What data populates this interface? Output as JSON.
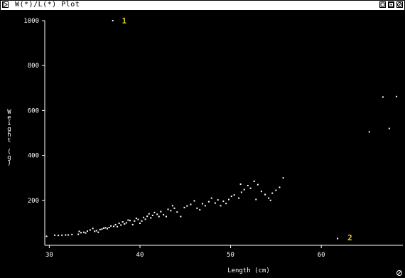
{
  "window": {
    "title": "W(*)/L(*) Plot",
    "controls": [
      "zoom-icon",
      "resize-icon",
      "close-icon"
    ]
  },
  "colors": {
    "background": "#000000",
    "points": "#ffffff",
    "annotation": "#e8d020"
  },
  "chart_data": {
    "type": "scatter",
    "title": "",
    "xlabel": "Length (cm)",
    "ylabel": "Weight (g)",
    "xlim": [
      29.5,
      69
    ],
    "ylim": [
      0,
      1000
    ],
    "x_ticks": [
      30,
      40,
      50,
      60
    ],
    "y_ticks": [
      200,
      400,
      600,
      800,
      1000
    ],
    "grid": false,
    "series": [
      {
        "points": [
          [
            29.7,
            40
          ],
          [
            30.6,
            45
          ],
          [
            31.0,
            44
          ],
          [
            31.4,
            45
          ],
          [
            31.8,
            46
          ],
          [
            32.1,
            46
          ],
          [
            32.5,
            48
          ],
          [
            33.2,
            49
          ],
          [
            33.3,
            62
          ],
          [
            33.5,
            56
          ],
          [
            33.8,
            58
          ],
          [
            34.0,
            55
          ],
          [
            34.2,
            63
          ],
          [
            34.5,
            68
          ],
          [
            34.8,
            75
          ],
          [
            35.0,
            62
          ],
          [
            35.2,
            65
          ],
          [
            35.4,
            58
          ],
          [
            35.6,
            70
          ],
          [
            35.8,
            72
          ],
          [
            36.0,
            76
          ],
          [
            36.2,
            78
          ],
          [
            36.4,
            74
          ],
          [
            36.6,
            79
          ],
          [
            36.8,
            86
          ],
          [
            37.1,
            84
          ],
          [
            37.3,
            92
          ],
          [
            37.5,
            83
          ],
          [
            37.7,
            98
          ],
          [
            37.9,
            90
          ],
          [
            38.1,
            104
          ],
          [
            38.3,
            95
          ],
          [
            38.5,
            100
          ],
          [
            38.7,
            112
          ],
          [
            38.9,
            110
          ],
          [
            39.2,
            92
          ],
          [
            39.4,
            108
          ],
          [
            39.6,
            120
          ],
          [
            39.8,
            115
          ],
          [
            40.0,
            98
          ],
          [
            40.2,
            108
          ],
          [
            40.4,
            124
          ],
          [
            40.6,
            116
          ],
          [
            40.8,
            129
          ],
          [
            41.0,
            140
          ],
          [
            41.2,
            122
          ],
          [
            41.4,
            133
          ],
          [
            41.6,
            146
          ],
          [
            41.9,
            138
          ],
          [
            42.1,
            128
          ],
          [
            42.3,
            150
          ],
          [
            42.6,
            136
          ],
          [
            42.9,
            128
          ],
          [
            43.1,
            160
          ],
          [
            43.4,
            154
          ],
          [
            43.6,
            176
          ],
          [
            43.8,
            165
          ],
          [
            44.1,
            148
          ],
          [
            44.5,
            128
          ],
          [
            44.9,
            168
          ],
          [
            45.2,
            175
          ],
          [
            45.6,
            182
          ],
          [
            46.0,
            198
          ],
          [
            46.3,
            165
          ],
          [
            46.6,
            158
          ],
          [
            46.9,
            185
          ],
          [
            47.2,
            176
          ],
          [
            47.6,
            194
          ],
          [
            47.9,
            210
          ],
          [
            48.3,
            188
          ],
          [
            48.6,
            202
          ],
          [
            48.9,
            176
          ],
          [
            49.2,
            196
          ],
          [
            49.5,
            186
          ],
          [
            49.8,
            204
          ],
          [
            50.1,
            218
          ],
          [
            50.4,
            224
          ],
          [
            50.9,
            210
          ],
          [
            51.2,
            236
          ],
          [
            51.5,
            248
          ],
          [
            51.9,
            266
          ],
          [
            52.2,
            254
          ],
          [
            52.6,
            285
          ],
          [
            53.0,
            270
          ],
          [
            53.4,
            240
          ],
          [
            53.8,
            226
          ],
          [
            54.2,
            210
          ],
          [
            54.6,
            232
          ],
          [
            55.0,
            245
          ],
          [
            55.4,
            258
          ],
          [
            55.8,
            300
          ],
          [
            51.1,
            272
          ],
          [
            52.8,
            204
          ],
          [
            54.4,
            200
          ],
          [
            65.3,
            505
          ],
          [
            66.8,
            660
          ],
          [
            67.5,
            520
          ],
          [
            68.3,
            662
          ]
        ]
      }
    ],
    "annotations": [
      {
        "label": "1",
        "x": 38.0,
        "y": 1000,
        "point": [
          37.0,
          1000
        ]
      },
      {
        "label": "2",
        "x": 62.9,
        "y": 35,
        "point": [
          61.8,
          30
        ]
      }
    ]
  }
}
